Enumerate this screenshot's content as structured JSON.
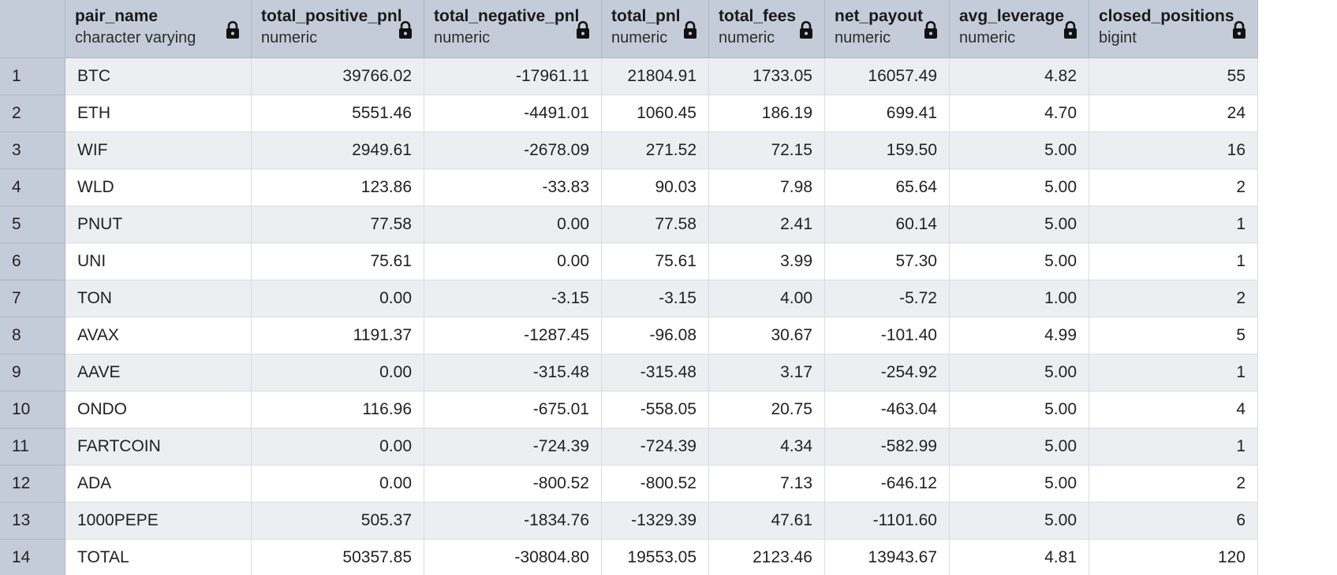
{
  "columns": [
    {
      "name": "pair_name",
      "type": "character varying",
      "align": "left"
    },
    {
      "name": "total_positive_pnl",
      "type": "numeric",
      "align": "right"
    },
    {
      "name": "total_negative_pnl",
      "type": "numeric",
      "align": "right"
    },
    {
      "name": "total_pnl",
      "type": "numeric",
      "align": "right"
    },
    {
      "name": "total_fees",
      "type": "numeric",
      "align": "right"
    },
    {
      "name": "net_payout",
      "type": "numeric",
      "align": "right"
    },
    {
      "name": "avg_leverage",
      "type": "numeric",
      "align": "right"
    },
    {
      "name": "closed_positions",
      "type": "bigint",
      "align": "right"
    }
  ],
  "lock_icon": "lock-icon",
  "rows": [
    {
      "n": "1",
      "cells": [
        "BTC",
        "39766.02",
        "-17961.11",
        "21804.91",
        "1733.05",
        "16057.49",
        "4.82",
        "55"
      ]
    },
    {
      "n": "2",
      "cells": [
        "ETH",
        "5551.46",
        "-4491.01",
        "1060.45",
        "186.19",
        "699.41",
        "4.70",
        "24"
      ]
    },
    {
      "n": "3",
      "cells": [
        "WIF",
        "2949.61",
        "-2678.09",
        "271.52",
        "72.15",
        "159.50",
        "5.00",
        "16"
      ]
    },
    {
      "n": "4",
      "cells": [
        "WLD",
        "123.86",
        "-33.83",
        "90.03",
        "7.98",
        "65.64",
        "5.00",
        "2"
      ]
    },
    {
      "n": "5",
      "cells": [
        "PNUT",
        "77.58",
        "0.00",
        "77.58",
        "2.41",
        "60.14",
        "5.00",
        "1"
      ]
    },
    {
      "n": "6",
      "cells": [
        "UNI",
        "75.61",
        "0.00",
        "75.61",
        "3.99",
        "57.30",
        "5.00",
        "1"
      ]
    },
    {
      "n": "7",
      "cells": [
        "TON",
        "0.00",
        "-3.15",
        "-3.15",
        "4.00",
        "-5.72",
        "1.00",
        "2"
      ]
    },
    {
      "n": "8",
      "cells": [
        "AVAX",
        "1191.37",
        "-1287.45",
        "-96.08",
        "30.67",
        "-101.40",
        "4.99",
        "5"
      ]
    },
    {
      "n": "9",
      "cells": [
        "AAVE",
        "0.00",
        "-315.48",
        "-315.48",
        "3.17",
        "-254.92",
        "5.00",
        "1"
      ]
    },
    {
      "n": "10",
      "cells": [
        "ONDO",
        "116.96",
        "-675.01",
        "-558.05",
        "20.75",
        "-463.04",
        "5.00",
        "4"
      ]
    },
    {
      "n": "11",
      "cells": [
        "FARTCOIN",
        "0.00",
        "-724.39",
        "-724.39",
        "4.34",
        "-582.99",
        "5.00",
        "1"
      ]
    },
    {
      "n": "12",
      "cells": [
        "ADA",
        "0.00",
        "-800.52",
        "-800.52",
        "7.13",
        "-646.12",
        "5.00",
        "2"
      ]
    },
    {
      "n": "13",
      "cells": [
        "1000PEPE",
        "505.37",
        "-1834.76",
        "-1329.39",
        "47.61",
        "-1101.60",
        "5.00",
        "6"
      ]
    },
    {
      "n": "14",
      "cells": [
        "TOTAL",
        "50357.85",
        "-30804.80",
        "19553.05",
        "2123.46",
        "13943.67",
        "4.81",
        "120"
      ]
    }
  ]
}
